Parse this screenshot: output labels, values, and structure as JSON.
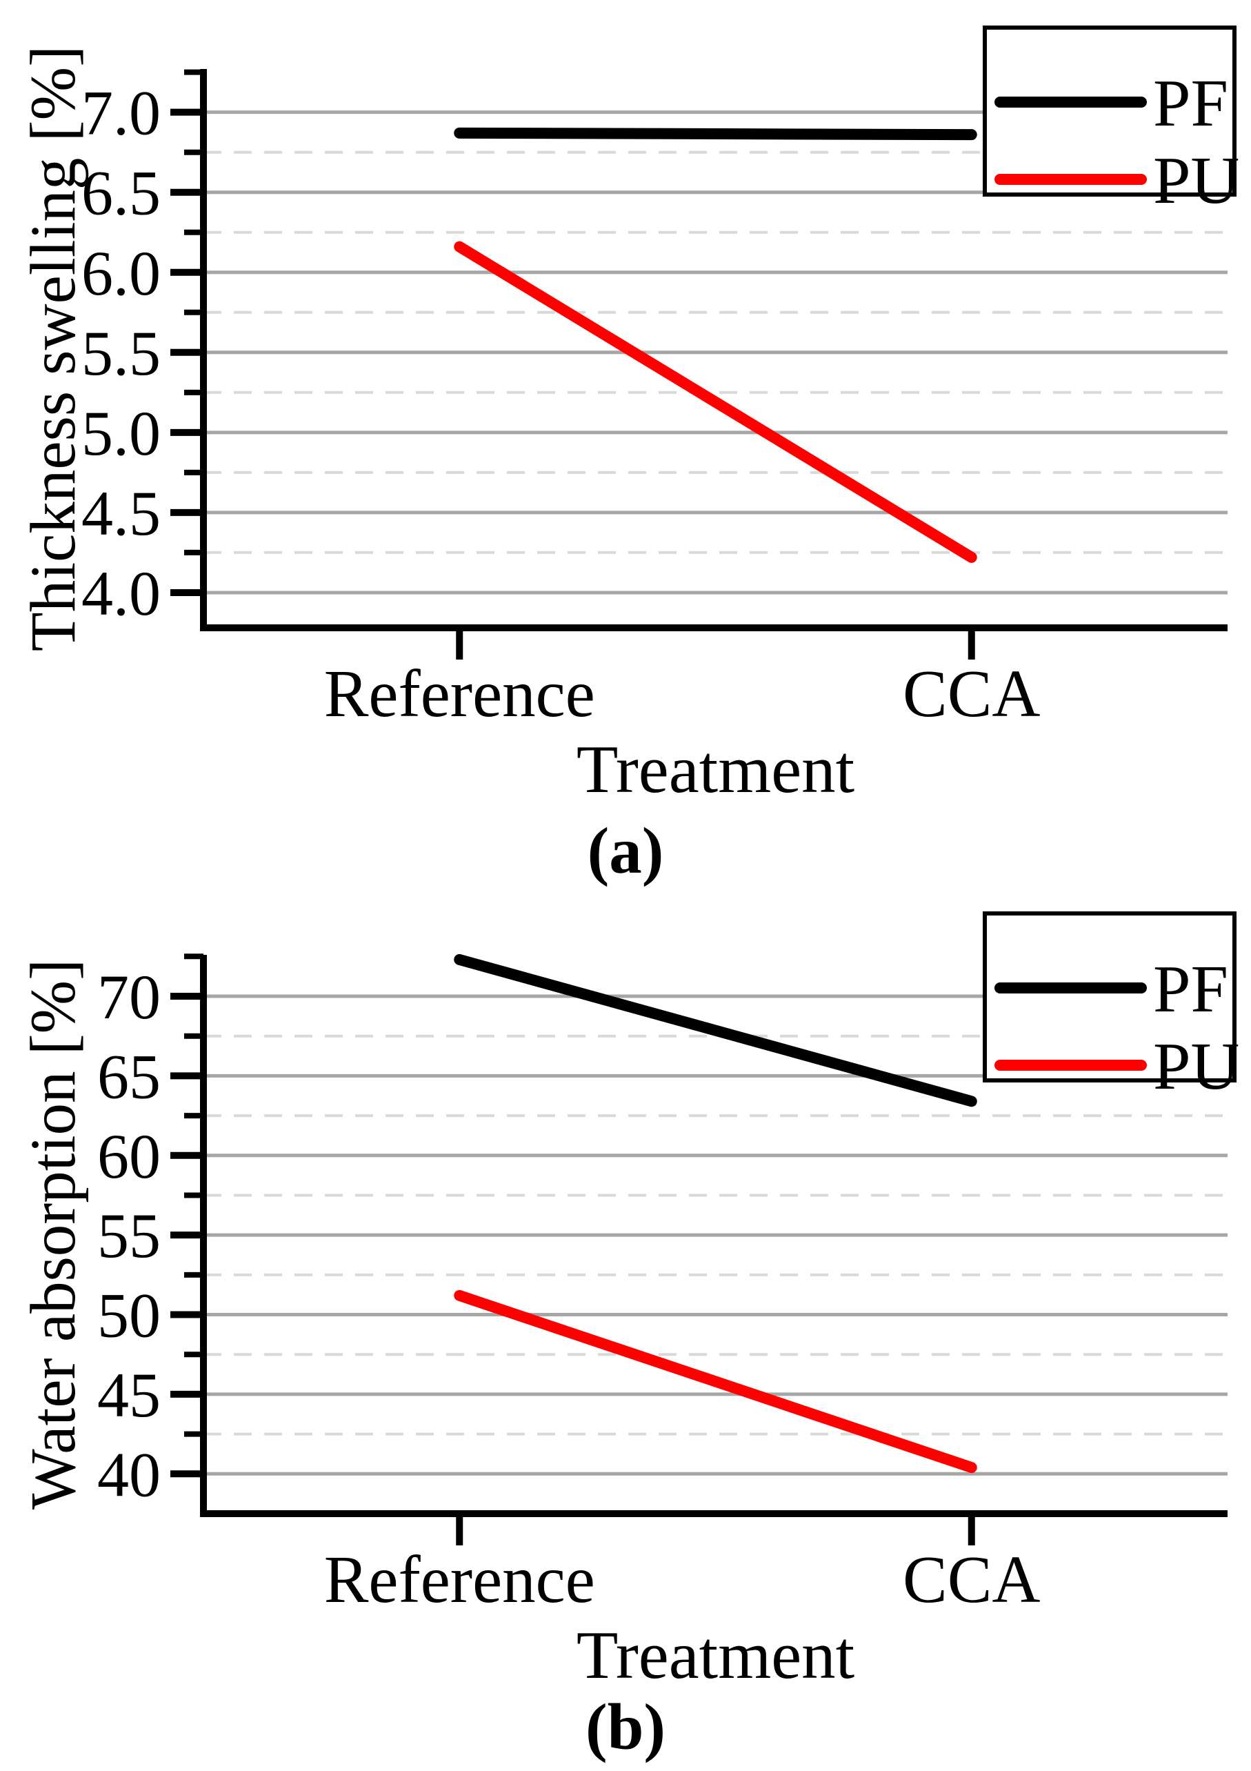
{
  "figure": {
    "panels": [
      {
        "caption": "(a)"
      },
      {
        "caption": "(b)"
      }
    ]
  },
  "colors": {
    "background": "#ffffff",
    "axis": "#000000",
    "grid_major": "#a6a6a6",
    "grid_minor": "#d9d9d9",
    "series_pf": "#000000",
    "series_pu": "#ff0000"
  },
  "chart_data": [
    {
      "id": "a",
      "type": "line",
      "panel_label": "(a)",
      "title": "",
      "xlabel": "Treatment",
      "ylabel": "Thickness swelling [%]",
      "categories": [
        "Reference",
        "CCA"
      ],
      "series": [
        {
          "name": "PF",
          "color": "#000000",
          "values": [
            6.87,
            6.86
          ]
        },
        {
          "name": "PU",
          "color": "#ff0000",
          "values": [
            6.16,
            4.22
          ]
        }
      ],
      "ylim": [
        3.78,
        7.27
      ],
      "major_ticks": [
        {
          "value": 4.0,
          "label": "4.0"
        },
        {
          "value": 4.5,
          "label": "4.5"
        },
        {
          "value": 5.0,
          "label": "5.0"
        },
        {
          "value": 5.5,
          "label": "5.5"
        },
        {
          "value": 6.0,
          "label": "6.0"
        },
        {
          "value": 6.5,
          "label": "6.5"
        },
        {
          "value": 7.0,
          "label": "7.0"
        }
      ],
      "minor_ticks": [
        4.25,
        4.75,
        5.25,
        5.75,
        6.25,
        6.75,
        7.25
      ],
      "grid": {
        "major": "solid",
        "minor": "dashed"
      },
      "legend": {
        "position": "top-right",
        "entries": [
          "PF",
          "PU"
        ]
      }
    },
    {
      "id": "b",
      "type": "line",
      "panel_label": "(b)",
      "title": "",
      "xlabel": "Treatment",
      "ylabel": "Water absorption [%]",
      "categories": [
        "Reference",
        "CCA"
      ],
      "series": [
        {
          "name": "PF",
          "color": "#000000",
          "values": [
            72.3,
            63.4
          ]
        },
        {
          "name": "PU",
          "color": "#ff0000",
          "values": [
            51.2,
            40.4
          ]
        }
      ],
      "ylim": [
        37.5,
        72.6
      ],
      "major_ticks": [
        {
          "value": 40,
          "label": "40"
        },
        {
          "value": 45,
          "label": "45"
        },
        {
          "value": 50,
          "label": "50"
        },
        {
          "value": 55,
          "label": "55"
        },
        {
          "value": 60,
          "label": "60"
        },
        {
          "value": 65,
          "label": "65"
        },
        {
          "value": 70,
          "label": "70"
        }
      ],
      "minor_ticks": [
        42.5,
        47.5,
        52.5,
        57.5,
        62.5,
        67.5,
        72.5
      ],
      "grid": {
        "major": "solid",
        "minor": "dashed"
      },
      "legend": {
        "position": "top-right",
        "entries": [
          "PF",
          "PU"
        ]
      }
    }
  ]
}
